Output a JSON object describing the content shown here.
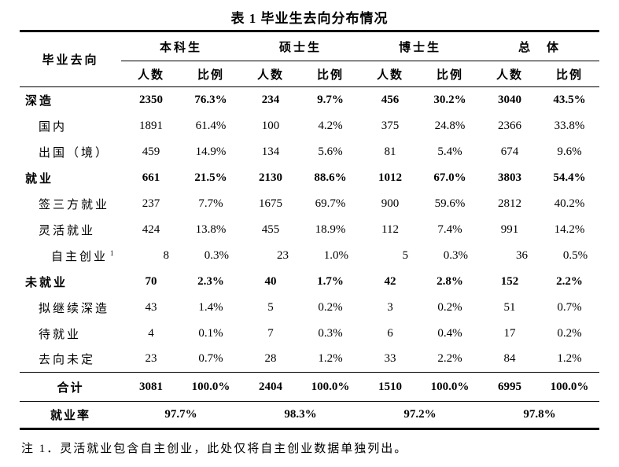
{
  "title": "表 1 毕业生去向分布情况",
  "table": {
    "corner_header": "毕业去向",
    "groups": [
      {
        "label": "本科生"
      },
      {
        "label": "硕士生"
      },
      {
        "label": "博士生"
      },
      {
        "label": "总　体"
      }
    ],
    "sub_headers": {
      "count": "人数",
      "ratio": "比例"
    },
    "rows": [
      {
        "label": "深造",
        "bold": true,
        "indent": 0,
        "values": [
          "2350",
          "76.3%",
          "234",
          "9.7%",
          "456",
          "30.2%",
          "3040",
          "43.5%"
        ]
      },
      {
        "label": "国内",
        "indent": 1,
        "values": [
          "1891",
          "61.4%",
          "100",
          "4.2%",
          "375",
          "24.8%",
          "2366",
          "33.8%"
        ]
      },
      {
        "label": "出国（境）",
        "indent": 1,
        "values": [
          "459",
          "14.9%",
          "134",
          "5.6%",
          "81",
          "5.4%",
          "674",
          "9.6%"
        ]
      },
      {
        "label": "就业",
        "bold": true,
        "indent": 0,
        "values": [
          "661",
          "21.5%",
          "2130",
          "88.6%",
          "1012",
          "67.0%",
          "3803",
          "54.4%"
        ]
      },
      {
        "label": "签三方就业",
        "indent": 1,
        "values": [
          "237",
          "7.7%",
          "1675",
          "69.7%",
          "900",
          "59.6%",
          "2812",
          "40.2%"
        ]
      },
      {
        "label": "灵活就业",
        "indent": 1,
        "values": [
          "424",
          "13.8%",
          "455",
          "18.9%",
          "112",
          "7.4%",
          "991",
          "14.2%"
        ]
      },
      {
        "label": "自主创业",
        "sup": "1",
        "indent": 2,
        "align": "right",
        "values": [
          "8",
          "0.3%",
          "23",
          "1.0%",
          "5",
          "0.3%",
          "36",
          "0.5%"
        ]
      },
      {
        "label": "未就业",
        "bold": true,
        "indent": 0,
        "values": [
          "70",
          "2.3%",
          "40",
          "1.7%",
          "42",
          "2.8%",
          "152",
          "2.2%"
        ]
      },
      {
        "label": "拟继续深造",
        "indent": 1,
        "values": [
          "43",
          "1.4%",
          "5",
          "0.2%",
          "3",
          "0.2%",
          "51",
          "0.7%"
        ]
      },
      {
        "label": "待就业",
        "indent": 1,
        "values": [
          "4",
          "0.1%",
          "7",
          "0.3%",
          "6",
          "0.4%",
          "17",
          "0.2%"
        ]
      },
      {
        "label": "去向未定",
        "indent": 1,
        "values": [
          "23",
          "0.7%",
          "28",
          "1.2%",
          "33",
          "2.2%",
          "84",
          "1.2%"
        ]
      }
    ],
    "total_row": {
      "label": "合计",
      "values": [
        "3081",
        "100.0%",
        "2404",
        "100.0%",
        "1510",
        "100.0%",
        "6995",
        "100.0%"
      ]
    },
    "rate_row": {
      "label": "就业率",
      "values": [
        "97.7%",
        "98.3%",
        "97.2%",
        "97.8%"
      ]
    }
  },
  "note": "注 1．灵活就业包含自主创业，此处仅将自主创业数据单独列出。"
}
